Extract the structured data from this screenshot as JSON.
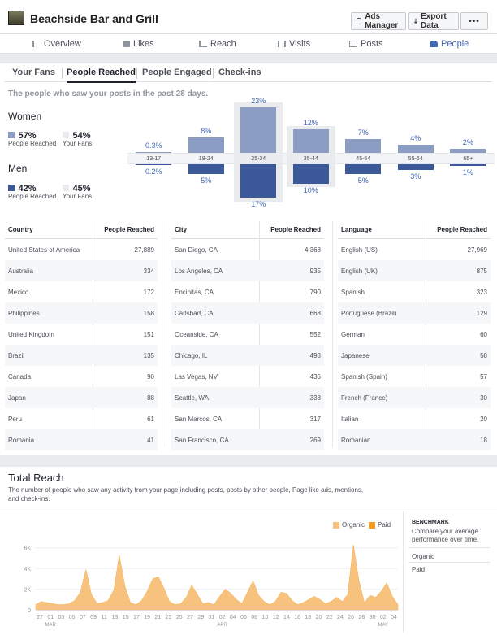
{
  "header": {
    "title": "Beachside Bar and Grill",
    "ads_manager_label": "Ads Manager",
    "export_label": "Export Data",
    "more_label": "•••"
  },
  "nav": {
    "tabs": [
      {
        "label": "Overview"
      },
      {
        "label": "Likes"
      },
      {
        "label": "Reach"
      },
      {
        "label": "Visits"
      },
      {
        "label": "Posts"
      },
      {
        "label": "People"
      }
    ],
    "active": "People"
  },
  "subtabs": {
    "items": [
      {
        "label": "Your Fans"
      },
      {
        "label": "People Reached"
      },
      {
        "label": "People Engaged"
      },
      {
        "label": "Check-ins"
      }
    ],
    "active": "People Reached"
  },
  "section_desc": "The people who saw your posts in the past 28 days.",
  "demographics": {
    "women": {
      "title": "Women",
      "reached": "57%",
      "reached_cap": "People Reached",
      "fans": "54%",
      "fans_cap": "Your Fans"
    },
    "men": {
      "title": "Men",
      "reached": "42%",
      "reached_cap": "People Reached",
      "fans": "45%",
      "fans_cap": "Your Fans"
    },
    "colors": {
      "women": "#8b9dc3",
      "men": "#3b5998",
      "fans_box": "#e9ebee"
    }
  },
  "chart_data": [
    {
      "type": "bar",
      "categories": [
        "13-17",
        "18-24",
        "25-34",
        "35-44",
        "45-54",
        "55-64",
        "65+"
      ],
      "series": [
        {
          "name": "Women",
          "values": [
            0.3,
            8,
            23,
            12,
            7,
            4,
            2
          ],
          "labels": [
            "0.3%",
            "8%",
            "23%",
            "12%",
            "7%",
            "4%",
            "2%"
          ]
        },
        {
          "name": "Men",
          "values": [
            0.2,
            5,
            17,
            10,
            5,
            3,
            1
          ],
          "labels": [
            "0.2%",
            "5%",
            "17%",
            "10%",
            "5%",
            "3%",
            "1%"
          ]
        }
      ]
    },
    {
      "type": "area",
      "title": "Total Reach",
      "x_ticks": [
        "27",
        "01",
        "03",
        "05",
        "07",
        "09",
        "11",
        "13",
        "15",
        "17",
        "19",
        "21",
        "23",
        "25",
        "27",
        "29",
        "31",
        "02",
        "04",
        "06",
        "08",
        "10",
        "12",
        "14",
        "16",
        "18",
        "20",
        "22",
        "24",
        "26",
        "28",
        "30",
        "02",
        "04"
      ],
      "month_labels": [
        {
          "label": "MAR",
          "at_tick": 1
        },
        {
          "label": "APR",
          "at_tick": 17
        },
        {
          "label": "MAY",
          "at_tick": 32
        }
      ],
      "y_ticks": [
        "6K",
        "4K",
        "2K",
        "0"
      ],
      "ylim": [
        0,
        7000
      ],
      "series": [
        {
          "name": "Organic",
          "values": [
            500,
            800,
            700,
            600,
            500,
            500,
            600,
            900,
            1700,
            3900,
            1500,
            600,
            700,
            900,
            1900,
            5300,
            2300,
            700,
            500,
            900,
            1800,
            3000,
            3200,
            2100,
            800,
            500,
            600,
            1200,
            2400,
            1500,
            600,
            700,
            500,
            1300,
            2000,
            1600,
            1000,
            600,
            1700,
            2800,
            1400,
            800,
            500,
            800,
            1700,
            1600,
            900,
            500,
            700,
            1000,
            1300,
            1000,
            600,
            800,
            1200,
            800,
            1500,
            6300,
            2800,
            700,
            1400,
            1200,
            1800,
            2600,
            1300,
            500
          ]
        },
        {
          "name": "Paid",
          "values": []
        }
      ],
      "legend": [
        "Organic",
        "Paid"
      ],
      "colors": {
        "Organic": "#f7c27e",
        "Paid": "#f29c1f"
      }
    }
  ],
  "tables": {
    "country": {
      "headers": [
        "Country",
        "People Reached"
      ],
      "rows": [
        [
          "United States of America",
          "27,889"
        ],
        [
          "Australia",
          "334"
        ],
        [
          "Mexico",
          "172"
        ],
        [
          "Philippines",
          "158"
        ],
        [
          "United Kingdom",
          "151"
        ],
        [
          "Brazil",
          "135"
        ],
        [
          "Canada",
          "90"
        ],
        [
          "Japan",
          "88"
        ],
        [
          "Peru",
          "61"
        ],
        [
          "Romania",
          "41"
        ]
      ]
    },
    "city": {
      "headers": [
        "City",
        "People Reached"
      ],
      "rows": [
        [
          "San Diego, CA",
          "4,368"
        ],
        [
          "Los Angeles, CA",
          "935"
        ],
        [
          "Encinitas, CA",
          "790"
        ],
        [
          "Carlsbad, CA",
          "668"
        ],
        [
          "Oceanside, CA",
          "552"
        ],
        [
          "Chicago, IL",
          "498"
        ],
        [
          "Las Vegas, NV",
          "436"
        ],
        [
          "Seattle, WA",
          "338"
        ],
        [
          "San Marcos, CA",
          "317"
        ],
        [
          "San Francisco, CA",
          "269"
        ]
      ]
    },
    "language": {
      "headers": [
        "Language",
        "People Reached"
      ],
      "rows": [
        [
          "English (US)",
          "27,969"
        ],
        [
          "English (UK)",
          "875"
        ],
        [
          "Spanish",
          "323"
        ],
        [
          "Portuguese (Brazil)",
          "129"
        ],
        [
          "German",
          "60"
        ],
        [
          "Japanese",
          "58"
        ],
        [
          "Spanish (Spain)",
          "57"
        ],
        [
          "French (France)",
          "30"
        ],
        [
          "Italian",
          "20"
        ],
        [
          "Romanian",
          "18"
        ]
      ]
    }
  },
  "total_reach": {
    "title": "Total Reach",
    "description": "The number of people who saw any activity from your page including posts, posts by other people, Page like ads, mentions, and check-ins."
  },
  "benchmark": {
    "title": "BENCHMARK",
    "desc": "Compare your average performance over time.",
    "items": [
      "Organic",
      "Paid"
    ]
  }
}
